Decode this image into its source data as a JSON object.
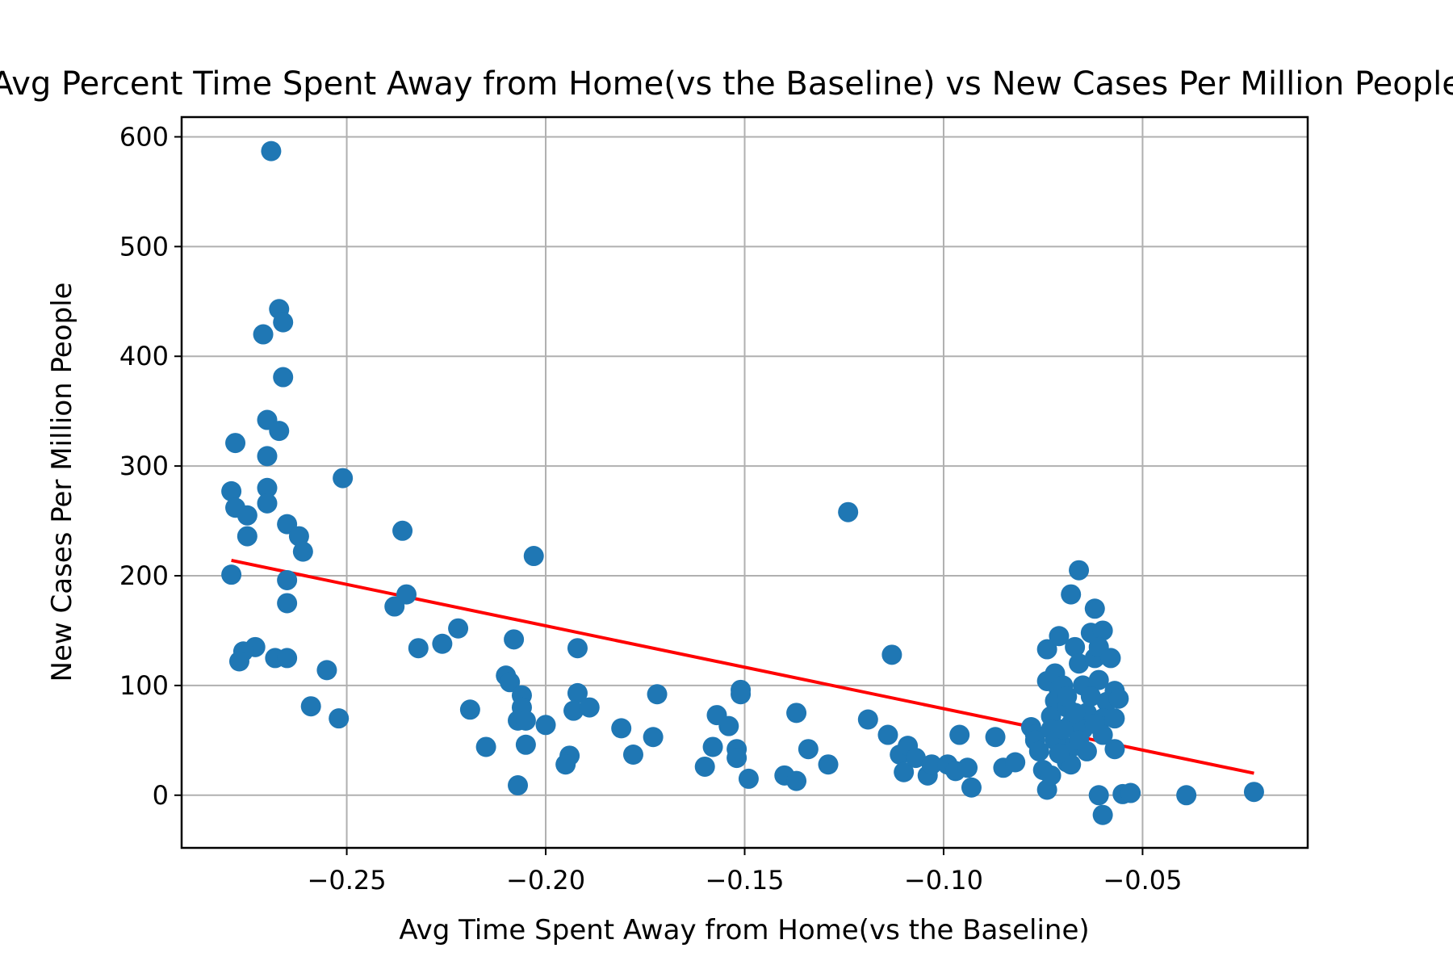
{
  "chart_data": {
    "type": "scatter",
    "title": "Avg Percent Time Spent Away from Home(vs the Baseline) vs New Cases Per Million People",
    "xlabel": "Avg Time Spent Away from Home(vs the Baseline)",
    "ylabel": "New Cases Per Million People",
    "xlim": [
      -0.2915,
      -0.0085
    ],
    "ylim": [
      -48,
      618
    ],
    "xticks": [
      -0.25,
      -0.2,
      -0.15,
      -0.1,
      -0.05
    ],
    "xtick_labels": [
      "−0.25",
      "−0.20",
      "−0.15",
      "−0.10",
      "−0.05"
    ],
    "yticks": [
      0,
      100,
      200,
      300,
      400,
      500,
      600
    ],
    "ytick_labels": [
      "0",
      "100",
      "200",
      "300",
      "400",
      "500",
      "600"
    ],
    "grid": true,
    "point_color": "#1f77b4",
    "trend_color": "#ff0000",
    "trendline": {
      "x": [
        -0.279,
        -0.022
      ],
      "y": [
        214,
        20
      ]
    },
    "points": [
      [
        -0.269,
        587
      ],
      [
        -0.267,
        443
      ],
      [
        -0.271,
        420
      ],
      [
        -0.266,
        431
      ],
      [
        -0.266,
        381
      ],
      [
        -0.27,
        342
      ],
      [
        -0.267,
        332
      ],
      [
        -0.278,
        321
      ],
      [
        -0.27,
        309
      ],
      [
        -0.27,
        280
      ],
      [
        -0.27,
        266
      ],
      [
        -0.279,
        277
      ],
      [
        -0.278,
        262
      ],
      [
        -0.275,
        255
      ],
      [
        -0.265,
        247
      ],
      [
        -0.275,
        236
      ],
      [
        -0.262,
        236
      ],
      [
        -0.261,
        222
      ],
      [
        -0.279,
        201
      ],
      [
        -0.265,
        196
      ],
      [
        -0.265,
        175
      ],
      [
        -0.251,
        289
      ],
      [
        -0.273,
        135
      ],
      [
        -0.276,
        131
      ],
      [
        -0.277,
        122
      ],
      [
        -0.268,
        125
      ],
      [
        -0.265,
        125
      ],
      [
        -0.255,
        114
      ],
      [
        -0.259,
        81
      ],
      [
        -0.252,
        70
      ],
      [
        -0.236,
        241
      ],
      [
        -0.235,
        183
      ],
      [
        -0.238,
        172
      ],
      [
        -0.232,
        134
      ],
      [
        -0.226,
        138
      ],
      [
        -0.222,
        152
      ],
      [
        -0.219,
        78
      ],
      [
        -0.215,
        44
      ],
      [
        -0.208,
        142
      ],
      [
        -0.21,
        109
      ],
      [
        -0.209,
        103
      ],
      [
        -0.206,
        91
      ],
      [
        -0.206,
        80
      ],
      [
        -0.207,
        68
      ],
      [
        -0.205,
        68
      ],
      [
        -0.205,
        46
      ],
      [
        -0.2,
        64
      ],
      [
        -0.207,
        9
      ],
      [
        -0.203,
        218
      ],
      [
        -0.192,
        134
      ],
      [
        -0.192,
        93
      ],
      [
        -0.193,
        77
      ],
      [
        -0.189,
        80
      ],
      [
        -0.194,
        36
      ],
      [
        -0.195,
        28
      ],
      [
        -0.181,
        61
      ],
      [
        -0.178,
        37
      ],
      [
        -0.173,
        53
      ],
      [
        -0.172,
        92
      ],
      [
        -0.16,
        26
      ],
      [
        -0.158,
        44
      ],
      [
        -0.157,
        73
      ],
      [
        -0.154,
        63
      ],
      [
        -0.152,
        42
      ],
      [
        -0.152,
        34
      ],
      [
        -0.151,
        96
      ],
      [
        -0.151,
        92
      ],
      [
        -0.149,
        15
      ],
      [
        -0.14,
        18
      ],
      [
        -0.137,
        13
      ],
      [
        -0.137,
        75
      ],
      [
        -0.134,
        42
      ],
      [
        -0.129,
        28
      ],
      [
        -0.124,
        258
      ],
      [
        -0.119,
        69
      ],
      [
        -0.114,
        55
      ],
      [
        -0.113,
        128
      ],
      [
        -0.111,
        37
      ],
      [
        -0.109,
        45
      ],
      [
        -0.11,
        21
      ],
      [
        -0.107,
        34
      ],
      [
        -0.104,
        18
      ],
      [
        -0.103,
        28
      ],
      [
        -0.099,
        28
      ],
      [
        -0.096,
        55
      ],
      [
        -0.097,
        22
      ],
      [
        -0.094,
        25
      ],
      [
        -0.093,
        7
      ],
      [
        -0.087,
        53
      ],
      [
        -0.085,
        25
      ],
      [
        -0.082,
        30
      ],
      [
        -0.078,
        62
      ],
      [
        -0.077,
        55
      ],
      [
        -0.077,
        50
      ],
      [
        -0.076,
        40
      ],
      [
        -0.075,
        23
      ],
      [
        -0.074,
        5
      ],
      [
        -0.073,
        18
      ],
      [
        -0.074,
        133
      ],
      [
        -0.074,
        104
      ],
      [
        -0.072,
        111
      ],
      [
        -0.071,
        95
      ],
      [
        -0.072,
        86
      ],
      [
        -0.073,
        72
      ],
      [
        -0.071,
        145
      ],
      [
        -0.07,
        100
      ],
      [
        -0.069,
        80
      ],
      [
        -0.068,
        65
      ],
      [
        -0.07,
        45
      ],
      [
        -0.069,
        30
      ],
      [
        -0.068,
        183
      ],
      [
        -0.066,
        205
      ],
      [
        -0.067,
        135
      ],
      [
        -0.066,
        120
      ],
      [
        -0.065,
        100
      ],
      [
        -0.064,
        75
      ],
      [
        -0.065,
        60
      ],
      [
        -0.067,
        45
      ],
      [
        -0.068,
        28
      ],
      [
        -0.063,
        148
      ],
      [
        -0.062,
        125
      ],
      [
        -0.061,
        105
      ],
      [
        -0.062,
        170
      ],
      [
        -0.06,
        150
      ],
      [
        -0.061,
        135
      ],
      [
        -0.059,
        85
      ],
      [
        -0.06,
        70
      ],
      [
        -0.06,
        55
      ],
      [
        -0.061,
        0
      ],
      [
        -0.06,
        -18
      ],
      [
        -0.058,
        125
      ],
      [
        -0.057,
        95
      ],
      [
        -0.056,
        88
      ],
      [
        -0.057,
        70
      ],
      [
        -0.057,
        42
      ],
      [
        -0.055,
        1
      ],
      [
        -0.053,
        2
      ],
      [
        -0.039,
        0
      ],
      [
        -0.022,
        3
      ],
      [
        -0.073,
        60
      ],
      [
        -0.072,
        50
      ],
      [
        -0.071,
        38
      ],
      [
        -0.07,
        60
      ],
      [
        -0.069,
        90
      ],
      [
        -0.067,
        75
      ],
      [
        -0.066,
        50
      ],
      [
        -0.064,
        40
      ],
      [
        -0.063,
        90
      ],
      [
        -0.062,
        65
      ]
    ]
  }
}
